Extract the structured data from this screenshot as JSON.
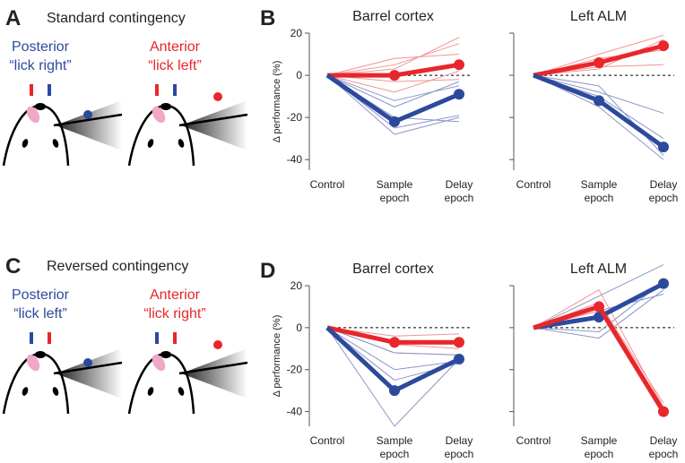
{
  "diagrams": [
    {
      "label": "A",
      "title": "Standard contingency",
      "mice": [
        {
          "line1": "Posterior",
          "line2": "“lick right”"
        },
        {
          "line1": "Anterior",
          "line2": "“lick left”"
        }
      ]
    },
    {
      "label": "C",
      "title": "Reversed contingency",
      "mice": [
        {
          "line1": "Posterior",
          "line2": "“lick left”"
        },
        {
          "line1": "Anterior",
          "line2": "“lick right”"
        }
      ]
    }
  ],
  "chart_data": [
    {
      "type": "line",
      "panel": "B",
      "title": "Barrel cortex",
      "ylabel": "Δ performance (%)",
      "categories": [
        "Control",
        "Sample epoch",
        "Delay epoch"
      ],
      "ylim": [
        -45,
        20
      ],
      "yticks": [
        -40,
        -20,
        0,
        20
      ],
      "tick_labels": true,
      "zero_line": true,
      "series": [
        {
          "color": "#f29595",
          "width": 1,
          "values": [
            0,
            -8,
            2
          ]
        },
        {
          "color": "#f29595",
          "width": 1,
          "values": [
            0,
            5,
            15
          ]
        },
        {
          "color": "#f29595",
          "width": 1,
          "values": [
            0,
            3,
            18
          ]
        },
        {
          "color": "#f29595",
          "width": 1,
          "values": [
            0,
            -3,
            -2
          ]
        },
        {
          "color": "#f29595",
          "width": 1,
          "values": [
            0,
            8,
            10
          ]
        },
        {
          "color": "#8d95c9",
          "width": 1,
          "values": [
            0,
            -28,
            -20
          ]
        },
        {
          "color": "#8d95c9",
          "width": 1,
          "values": [
            0,
            -20,
            -22
          ]
        },
        {
          "color": "#8d95c9",
          "width": 1,
          "values": [
            0,
            -15,
            -3
          ]
        },
        {
          "color": "#8d95c9",
          "width": 1,
          "values": [
            0,
            -25,
            -19
          ]
        },
        {
          "color": "#8d95c9",
          "width": 1,
          "values": [
            0,
            -12,
            -5
          ]
        },
        {
          "color": "#e8262b",
          "width": 5,
          "markers": true,
          "values": [
            0,
            0,
            5
          ]
        },
        {
          "color": "#2c4a9c",
          "width": 5,
          "markers": true,
          "values": [
            0,
            -22,
            -9
          ]
        }
      ]
    },
    {
      "type": "line",
      "title": "Left ALM",
      "categories": [
        "Control",
        "Sample epoch",
        "Delay epoch"
      ],
      "ylim": [
        -45,
        20
      ],
      "yticks": [
        -40,
        -20,
        0,
        20
      ],
      "tick_labels": false,
      "zero_line": true,
      "series": [
        {
          "color": "#f29595",
          "width": 1,
          "values": [
            0,
            10,
            19
          ]
        },
        {
          "color": "#f29595",
          "width": 1,
          "values": [
            0,
            4,
            5
          ]
        },
        {
          "color": "#f29595",
          "width": 1,
          "values": [
            0,
            8,
            12
          ]
        },
        {
          "color": "#f29595",
          "width": 1,
          "values": [
            0,
            3,
            17
          ]
        },
        {
          "color": "#8d95c9",
          "width": 1,
          "values": [
            0,
            -8,
            -18
          ]
        },
        {
          "color": "#8d95c9",
          "width": 1,
          "values": [
            0,
            -15,
            -40
          ]
        },
        {
          "color": "#8d95c9",
          "width": 1,
          "values": [
            0,
            -10,
            -30
          ]
        },
        {
          "color": "#8d95c9",
          "width": 1,
          "values": [
            0,
            -5,
            -38
          ]
        },
        {
          "color": "#e8262b",
          "width": 5,
          "markers": true,
          "values": [
            0,
            6,
            14
          ]
        },
        {
          "color": "#2c4a9c",
          "width": 5,
          "markers": true,
          "values": [
            0,
            -12,
            -34
          ]
        }
      ]
    },
    {
      "type": "line",
      "panel": "D",
      "title": "Barrel cortex",
      "ylabel": "Δ performance (%)",
      "categories": [
        "Control",
        "Sample epoch",
        "Delay epoch"
      ],
      "ylim": [
        -47,
        20
      ],
      "yticks": [
        -40,
        -20,
        0,
        20
      ],
      "tick_labels": true,
      "zero_line": true,
      "series": [
        {
          "color": "#f29595",
          "width": 1,
          "values": [
            0,
            -12,
            -13
          ]
        },
        {
          "color": "#f29595",
          "width": 1,
          "values": [
            0,
            -4,
            -3
          ]
        },
        {
          "color": "#f29595",
          "width": 1,
          "values": [
            0,
            -8,
            -10
          ]
        },
        {
          "color": "#8d95c9",
          "width": 1,
          "values": [
            0,
            -47,
            -15
          ]
        },
        {
          "color": "#8d95c9",
          "width": 1,
          "values": [
            0,
            -20,
            -16
          ]
        },
        {
          "color": "#8d95c9",
          "width": 1,
          "values": [
            0,
            -12,
            -13
          ]
        },
        {
          "color": "#8d95c9",
          "width": 1,
          "values": [
            0,
            -25,
            -17
          ]
        },
        {
          "color": "#e8262b",
          "width": 5,
          "markers": true,
          "values": [
            0,
            -7,
            -7
          ]
        },
        {
          "color": "#2c4a9c",
          "width": 5,
          "markers": true,
          "values": [
            0,
            -30,
            -15
          ]
        }
      ]
    },
    {
      "type": "line",
      "title": "Left ALM",
      "categories": [
        "Control",
        "Sample epoch",
        "Delay epoch"
      ],
      "ylim": [
        -47,
        20
      ],
      "yticks": [
        -40,
        -20,
        0,
        20
      ],
      "tick_labels": false,
      "zero_line": true,
      "series": [
        {
          "color": "#8d95c9",
          "width": 1,
          "values": [
            0,
            15,
            30
          ]
        },
        {
          "color": "#8d95c9",
          "width": 1,
          "values": [
            0,
            -5,
            18
          ]
        },
        {
          "color": "#8d95c9",
          "width": 1,
          "values": [
            0,
            8,
            16
          ]
        },
        {
          "color": "#8d95c9",
          "width": 1,
          "values": [
            0,
            -2,
            22
          ]
        },
        {
          "color": "#f29595",
          "width": 1,
          "values": [
            0,
            12,
            -36
          ]
        },
        {
          "color": "#f29595",
          "width": 1,
          "values": [
            0,
            8,
            -42
          ]
        },
        {
          "color": "#f29595",
          "width": 1,
          "values": [
            0,
            18,
            -38
          ]
        },
        {
          "color": "#2c4a9c",
          "width": 5,
          "markers": true,
          "values": [
            0,
            5,
            21
          ]
        },
        {
          "color": "#e8262b",
          "width": 5,
          "markers": true,
          "values": [
            0,
            10,
            -40
          ]
        }
      ]
    }
  ]
}
